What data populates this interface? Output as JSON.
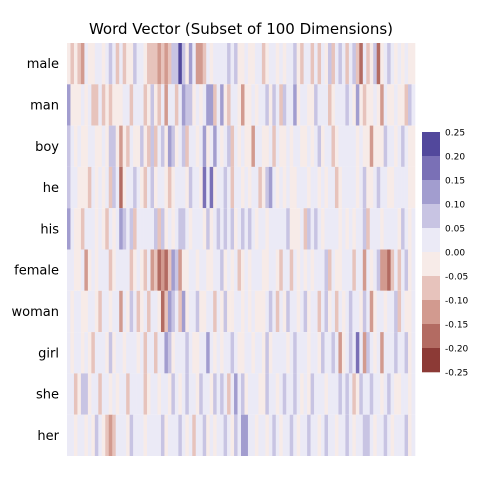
{
  "chart_data": {
    "type": "heatmap",
    "title": "Word Vector (Subset of 100 Dimensions)",
    "rows": [
      "male",
      "man",
      "boy",
      "he",
      "his",
      "female",
      "woman",
      "girl",
      "she",
      "her"
    ],
    "num_dimensions": 100,
    "value_range": [
      -0.25,
      0.25
    ],
    "colorbar": {
      "ticks": [
        "0.25",
        "0.20",
        "0.15",
        "0.10",
        "0.05",
        "0.00",
        "-0.05",
        "-0.10",
        "-0.15",
        "-0.20",
        "-0.25"
      ],
      "colors": [
        "#52489c",
        "#7a70b6",
        "#a29dcf",
        "#c8c4e3",
        "#ebeaf6",
        "#f7ebe8",
        "#e7c3bc",
        "#d29a8f",
        "#b36b62",
        "#8c3a36"
      ]
    },
    "values": [
      [
        -0.04,
        -0.08,
        0.0,
        -0.06,
        -0.1,
        0.05,
        0.0,
        -0.04,
        0.03,
        0.05,
        -0.01,
        0.03,
        0.06,
        0.01,
        -0.06,
        0.02,
        -0.08,
        0.0,
        -0.02,
        0.06,
        0.04,
        0.03,
        0.0,
        -0.07,
        -0.09,
        -0.06,
        -0.12,
        -0.09,
        -0.14,
        -0.07,
        0.1,
        0.08,
        0.2,
        0.06,
        -0.04,
        0.15,
        0.05,
        -0.13,
        -0.1,
        -0.06,
        0.02,
        0.0,
        0.01,
        0.03,
        0.01,
        0.02,
        0.06,
        0.01,
        0.07,
        -0.02,
        -0.01,
        0.04,
        -0.03,
        0.0,
        0.03,
        0.04,
        -0.06,
        -0.02,
        0.02,
        0.01,
        -0.04,
        0.04,
        -0.02,
        0.02,
        0.03,
        0.06,
        -0.02,
        -0.07,
        0.04,
        0.02,
        -0.05,
        0.02,
        -0.05,
        0.03,
        0.0,
        0.06,
        -0.05,
        0.03,
        0.08,
        0.04,
        -0.07,
        0.02,
        0.08,
        -0.08,
        -0.18,
        0.03,
        -0.08,
        -0.03,
        0.06,
        -0.18,
        -0.04,
        0.04,
        0.07,
        0.05,
        0.0,
        0.01,
        -0.03,
        0.01,
        -0.04,
        -0.02
      ],
      [
        0.12,
        -0.02,
        0.0,
        -0.03,
        0.03,
        0.0,
        0.01,
        -0.08,
        -0.05,
        0.02,
        -0.06,
        -0.04,
        -0.09,
        -0.02,
        0.0,
        0.0,
        0.04,
        0.02,
        -0.05,
        0.03,
        0.03,
        0.05,
        -0.08,
        0.0,
        0.06,
        -0.03,
        -0.05,
        0.03,
        -0.12,
        0.02,
        0.03,
        -0.09,
        0.03,
        0.12,
        0.08,
        0.06,
        -0.01,
        0.04,
        -0.03,
        0.01,
        0.15,
        0.12,
        -0.07,
        0.02,
        0.13,
        0.0,
        -0.06,
        0.04,
        0.05,
        -0.03,
        -0.1,
        -0.01,
        -0.04,
        0.05,
        -0.03,
        0.05,
        0.02,
        0.06,
        -0.01,
        0.06,
        0.02,
        -0.07,
        0.07,
        0.01,
        0.04,
        0.15,
        -0.02,
        0.01,
        0.04,
        -0.03,
        -0.04,
        0.06,
        0.02,
        0.05,
        0.02,
        -0.06,
        0.0,
        0.04,
        0.01,
        0.02,
        0.06,
        0.01,
        -0.03,
        0.14,
        -0.04,
        -0.07,
        -0.03,
        0.0,
        0.04,
        -0.03,
        -0.11,
        0.03,
        -0.04,
        -0.04,
        0.03,
        0.0,
        -0.02,
        -0.08,
        0.06,
        0.02
      ],
      [
        0.06,
        0.05,
        -0.01,
        0.02,
        0.0,
        0.0,
        0.04,
        0.02,
        -0.04,
        -0.02,
        0.03,
        -0.03,
        0.1,
        0.07,
        -0.03,
        -0.13,
        0.0,
        -0.08,
        0.05,
        -0.03,
        -0.03,
        0.06,
        0.0,
        -0.06,
        0.07,
        -0.09,
        0.01,
        0.08,
        -0.03,
        0.12,
        0.06,
        -0.02,
        0.02,
        0.06,
        -0.07,
        0.04,
        0.03,
        0.0,
        0.04,
        0.13,
        -0.03,
        0.05,
        0.12,
        0.05,
        -0.04,
        0.04,
        0.06,
        -0.09,
        0.01,
        -0.03,
        0.03,
        0.0,
        -0.04,
        -0.11,
        0.03,
        0.05,
        -0.02,
        0.0,
        0.01,
        -0.07,
        0.04,
        -0.03,
        0.0,
        0.05,
        -0.01,
        0.03,
        0.02,
        -0.04,
        -0.03,
        0.02,
        0.0,
        0.04,
        0.06,
        -0.03,
        0.05,
        0.02,
        -0.08,
        0.0,
        0.02,
        0.04,
        0.03,
        0.03,
        0.01,
        -0.02,
        0.02,
        0.0,
        -0.04,
        -0.1,
        -0.03,
        -0.04,
        -0.03,
        0.08,
        0.04,
        0.03,
        0.0,
        0.03,
        0.07,
        0.01,
        -0.03,
        0.0
      ],
      [
        0.1,
        0.05,
        0.02,
        -0.03,
        0.0,
        -0.02,
        -0.05,
        0.04,
        0.0,
        0.03,
        -0.04,
        0.01,
        -0.07,
        0.06,
        0.02,
        -0.18,
        -0.01,
        0.03,
        0.03,
        0.06,
        0.03,
        -0.03,
        -0.06,
        0.02,
        0.07,
        -0.03,
        0.04,
        0.03,
        0.0,
        -0.07,
        0.0,
        0.03,
        0.02,
        0.04,
        -0.03,
        0.06,
        0.03,
        0.05,
        0.0,
        0.16,
        0.02,
        0.18,
        -0.04,
        0.03,
        0.05,
        0.07,
        0.01,
        -0.06,
        0.03,
        0.02,
        0.0,
        0.04,
        0.0,
        0.03,
        0.04,
        -0.05,
        -0.04,
        0.1,
        0.11,
        0.03,
        -0.03,
        0.01,
        0.0,
        0.04,
        -0.04,
        0.0,
        0.02,
        0.05,
        0.03,
        0.0,
        0.04,
        0.05,
        -0.03,
        0.03,
        -0.03,
        0.02,
        0.04,
        -0.07,
        -0.04,
        0.02,
        0.02,
        0.02,
        0.03,
        -0.03,
        0.03,
        0.06,
        -0.04,
        0.0,
        0.01,
        0.06,
        0.02,
        0.04,
        -0.04,
        0.0,
        0.02,
        0.01,
        0.02,
        0.03,
        -0.03,
        0.0
      ],
      [
        0.15,
        0.01,
        0.0,
        0.0,
        -0.05,
        0.01,
        0.02,
        0.04,
        -0.03,
        0.03,
        0.0,
        -0.06,
        0.04,
        -0.04,
        0.02,
        0.12,
        0.06,
        0.04,
        0.06,
        -0.05,
        0.05,
        0.03,
        0.01,
        0.02,
        0.01,
        0.06,
        -0.06,
        0.06,
        -0.03,
        0.05,
        0.0,
        0.04,
        0.07,
        0.08,
        0.03,
        -0.02,
        0.01,
        0.04,
        0.04,
        0.0,
        0.08,
        0.0,
        0.03,
        0.06,
        0.04,
        0.07,
        0.03,
        0.09,
        -0.03,
        0.04,
        0.06,
        0.03,
        0.06,
        0.01,
        -0.02,
        0.05,
        0.04,
        0.0,
        0.02,
        0.02,
        0.01,
        0.04,
        0.03,
        0.06,
        0.0,
        -0.03,
        0.0,
        0.04,
        -0.05,
        0.06,
        0.03,
        0.06,
        0.02,
        0.0,
        0.05,
        0.03,
        0.02,
        0.01,
        0.0,
        0.03,
        0.0,
        0.03,
        -0.02,
        0.05,
        0.03,
        0.06,
        -0.08,
        0.02,
        0.04,
        0.01,
        0.0,
        0.02,
        0.03,
        0.03,
        0.05,
        0.0,
        0.06,
        0.04,
        0.0,
        0.01
      ],
      [
        0.01,
        0.04,
        0.0,
        -0.03,
        0.03,
        -0.12,
        0.0,
        0.04,
        -0.04,
        0.02,
        0.03,
        0.05,
        -0.05,
        -0.03,
        0.04,
        0.01,
        0.03,
        0.02,
        -0.05,
        -0.02,
        0.03,
        0.0,
        -0.06,
        0.03,
        -0.1,
        -0.08,
        -0.15,
        -0.11,
        -0.18,
        -0.09,
        0.12,
        0.06,
        -0.13,
        -0.04,
        -0.02,
        0.05,
        0.02,
        0.0,
        0.03,
        0.04,
        -0.04,
        0.0,
        0.04,
        0.03,
        0.06,
        0.0,
        0.02,
        -0.04,
        0.03,
        -0.05,
        0.0,
        0.02,
        -0.04,
        0.02,
        0.04,
        0.03,
        0.0,
        -0.03,
        0.03,
        0.01,
        0.0,
        -0.05,
        0.05,
        0.02,
        -0.06,
        0.02,
        0.0,
        0.03,
        -0.04,
        0.03,
        0.0,
        0.03,
        0.05,
        0.04,
        0.07,
        -0.06,
        0.05,
        0.0,
        -0.04,
        0.03,
        0.04,
        0.02,
        -0.06,
        0.04,
        0.01,
        -0.12,
        0.03,
        0.0,
        0.02,
        0.06,
        -0.14,
        -0.12,
        -0.15,
        -0.09,
        0.05,
        -0.06,
        0.03,
        0.06,
        0.0,
        0.02
      ],
      [
        0.04,
        -0.02,
        0.01,
        0.03,
        -0.03,
        0.0,
        0.02,
        0.03,
        0.0,
        -0.06,
        0.04,
        0.03,
        0.0,
        0.02,
        0.04,
        -0.1,
        0.03,
        -0.04,
        0.06,
        0.02,
        -0.08,
        0.0,
        0.03,
        -0.05,
        0.04,
        0.01,
        0.0,
        -0.15,
        -0.08,
        0.15,
        0.1,
        0.05,
        -0.06,
        0.12,
        -0.03,
        0.04,
        0.02,
        0.06,
        -0.03,
        -0.02,
        0.04,
        0.03,
        -0.08,
        0.02,
        -0.04,
        0.06,
        0.0,
        -0.04,
        0.02,
        0.01,
        0.0,
        0.04,
        -0.04,
        0.02,
        -0.03,
        -0.03,
        0.0,
        0.03,
        0.06,
        0.02,
        -0.06,
        0.01,
        0.0,
        0.06,
        0.04,
        0.02,
        -0.03,
        0.03,
        0.06,
        0.0,
        0.02,
        0.04,
        -0.05,
        0.03,
        0.06,
        0.0,
        0.03,
        -0.06,
        0.04,
        0.0,
        0.03,
        0.07,
        0.04,
        0.04,
        -0.03,
        0.06,
        0.02,
        -0.1,
        0.0,
        0.04,
        0.03,
        0.0,
        0.02,
        0.01,
        0.06,
        -0.05,
        0.03,
        0.0,
        0.0,
        0.04
      ],
      [
        0.03,
        0.0,
        0.01,
        0.02,
        -0.02,
        0.04,
        0.0,
        -0.05,
        0.03,
        0.01,
        0.04,
        -0.04,
        0.06,
        0.0,
        0.02,
        0.03,
        -0.04,
        0.01,
        0.03,
        0.05,
        0.0,
        0.04,
        -0.06,
        0.03,
        0.02,
        -0.09,
        0.03,
        0.04,
        0.15,
        0.08,
        -0.04,
        0.02,
        0.04,
        0.03,
        0.06,
        0.02,
        -0.04,
        0.0,
        0.02,
        0.04,
        0.13,
        0.03,
        -0.04,
        0.05,
        0.0,
        0.03,
        0.02,
        0.06,
        0.01,
        -0.03,
        0.0,
        0.04,
        0.03,
        0.0,
        0.03,
        0.04,
        -0.02,
        0.06,
        0.0,
        0.03,
        0.05,
        0.01,
        0.04,
        0.0,
        0.02,
        0.06,
        0.04,
        0.02,
        0.03,
        0.0,
        0.04,
        0.03,
        -0.04,
        0.06,
        0.02,
        0.04,
        0.06,
        0.03,
        -0.12,
        0.0,
        0.03,
        0.06,
        0.04,
        0.16,
        0.03,
        -0.12,
        0.06,
        0.04,
        0.0,
        0.02,
        -0.14,
        0.03,
        0.01,
        0.04,
        0.06,
        0.02,
        0.04,
        0.1,
        0.0,
        0.03
      ],
      [
        0.03,
        0.04,
        -0.08,
        0.0,
        0.06,
        0.07,
        0.0,
        0.02,
        0.04,
        -0.05,
        0.03,
        0.02,
        -0.04,
        0.05,
        0.0,
        0.02,
        0.05,
        -0.06,
        0.03,
        0.02,
        0.04,
        0.03,
        -0.07,
        0.0,
        0.02,
        0.03,
        -0.03,
        0.01,
        0.04,
        -0.04,
        0.06,
        0.02,
        0.0,
        0.03,
        0.08,
        0.04,
        0.02,
        -0.04,
        0.06,
        0.04,
        0.03,
        0.0,
        0.06,
        0.02,
        0.08,
        0.03,
        -0.05,
        0.04,
        0.12,
        0.03,
        0.06,
        0.0,
        0.04,
        0.02,
        0.03,
        0.0,
        -0.03,
        0.06,
        0.02,
        0.03,
        0.0,
        0.04,
        0.06,
        0.02,
        0.03,
        0.06,
        0.04,
        0.0,
        0.02,
        -0.04,
        0.06,
        0.02,
        0.03,
        0.04,
        0.0,
        0.02,
        0.05,
        0.03,
        0.06,
        0.04,
        0.1,
        0.02,
        -0.06,
        0.0,
        0.06,
        0.04,
        0.03,
        0.08,
        0.02,
        0.04,
        0.0,
        0.03,
        0.06,
        0.02,
        0.0,
        -0.04,
        0.03,
        0.04,
        0.0,
        0.02
      ],
      [
        0.05,
        0.03,
        0.0,
        0.02,
        0.04,
        0.0,
        0.02,
        -0.04,
        0.06,
        0.03,
        0.0,
        -0.08,
        -0.14,
        -0.06,
        0.04,
        0.02,
        0.03,
        0.0,
        0.06,
        0.02,
        0.03,
        0.04,
        0.0,
        0.02,
        0.05,
        0.03,
        0.04,
        0.06,
        0.0,
        0.03,
        0.02,
        0.04,
        0.06,
        0.03,
        0.0,
        0.04,
        -0.05,
        0.03,
        0.02,
        0.06,
        -0.04,
        0.03,
        0.0,
        0.02,
        0.04,
        0.06,
        0.02,
        0.0,
        0.06,
        0.03,
        0.12,
        0.14,
        0.04,
        0.02,
        0.0,
        0.03,
        0.04,
        -0.04,
        0.02,
        0.06,
        0.03,
        0.0,
        0.04,
        0.02,
        0.06,
        0.03,
        0.0,
        0.04,
        0.02,
        0.06,
        0.03,
        0.04,
        0.0,
        0.02,
        0.06,
        0.04,
        0.03,
        0.0,
        0.02,
        0.04,
        0.06,
        0.03,
        0.0,
        0.02,
        0.04,
        0.06,
        0.1,
        0.03,
        0.0,
        0.02,
        0.04,
        0.06,
        0.03,
        0.0,
        0.02,
        0.04,
        0.03,
        0.06,
        0.0,
        0.02
      ]
    ]
  }
}
